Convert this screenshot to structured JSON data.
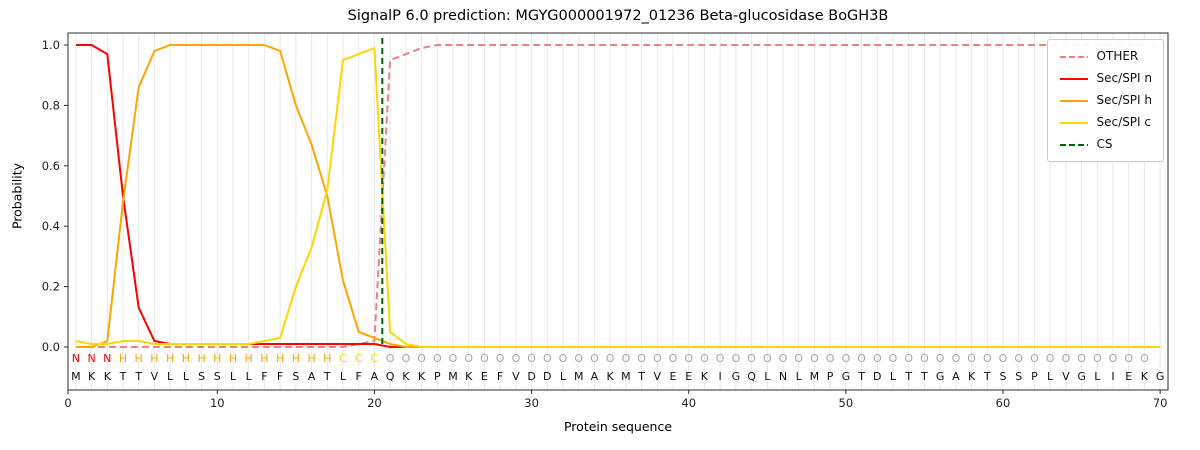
{
  "figure": {
    "title": "SignalP 6.0 prediction: MGYG000001972_01236 Beta-glucosidase BoGH3B",
    "xlabel": "Protein sequence",
    "ylabel": "Probability"
  },
  "chart_data": {
    "type": "line",
    "title": "SignalP 6.0 prediction: MGYG000001972_01236 Beta-glucosidase BoGH3B",
    "xlabel": "Protein sequence",
    "ylabel": "Probability",
    "ylim": [
      0,
      1
    ],
    "grid": "vertical-per-residue",
    "x": [
      1,
      2,
      3,
      4,
      5,
      6,
      7,
      8,
      9,
      10,
      11,
      12,
      13,
      14,
      15,
      16,
      17,
      18,
      19,
      20,
      21,
      22,
      23,
      24,
      25,
      26,
      27,
      28,
      29,
      30,
      31,
      32,
      33,
      34,
      35,
      36,
      37,
      38,
      39,
      40,
      41,
      42,
      43,
      44,
      45,
      46,
      47,
      48,
      49,
      50,
      51,
      52,
      53,
      54,
      55,
      56,
      57,
      58,
      59,
      60,
      61,
      62,
      63,
      64,
      65,
      66,
      67,
      68,
      69,
      70
    ],
    "axes": {
      "x_ticks": {
        "values": [
          0,
          10,
          20,
          30,
          40,
          50,
          60,
          70
        ],
        "labels": [
          "0",
          "10",
          "20",
          "30",
          "40",
          "50",
          "60",
          "70"
        ]
      },
      "y_ticks": {
        "values": [
          0,
          0.2,
          0.4,
          0.6,
          0.8,
          1.0
        ],
        "labels": [
          "0.0",
          "0.2",
          "0.4",
          "0.6",
          "0.8",
          "1.0"
        ]
      }
    },
    "series": [
      {
        "name": "OTHER",
        "color": "#f08080",
        "style": "dashed",
        "values": [
          0,
          0,
          0,
          0,
          0,
          0,
          0,
          0,
          0,
          0,
          0,
          0,
          0,
          0,
          0,
          0,
          0,
          0,
          0.01,
          0.02,
          0.95,
          0.97,
          0.99,
          1,
          1,
          1,
          1,
          1,
          1,
          1,
          1,
          1,
          1,
          1,
          1,
          1,
          1,
          1,
          1,
          1,
          1,
          1,
          1,
          1,
          1,
          1,
          1,
          1,
          1,
          1,
          1,
          1,
          1,
          1,
          1,
          1,
          1,
          1,
          1,
          1,
          1,
          1,
          1,
          1,
          1,
          1,
          1,
          1,
          1,
          1
        ]
      },
      {
        "name": "Sec/SPI n",
        "color": "#ff0000",
        "style": "solid",
        "values": [
          1,
          1,
          0.97,
          0.5,
          0.13,
          0.02,
          0.01,
          0.01,
          0.01,
          0.01,
          0.01,
          0.01,
          0.01,
          0.01,
          0.01,
          0.01,
          0.01,
          0.01,
          0.01,
          0.01,
          0,
          0,
          0,
          0,
          0,
          0,
          0,
          0,
          0,
          0,
          0,
          0,
          0,
          0,
          0,
          0,
          0,
          0,
          0,
          0,
          0,
          0,
          0,
          0,
          0,
          0,
          0,
          0,
          0,
          0,
          0,
          0,
          0,
          0,
          0,
          0,
          0,
          0,
          0,
          0,
          0,
          0,
          0,
          0,
          0,
          0,
          0,
          0,
          0,
          0
        ]
      },
      {
        "name": "Sec/SPI h",
        "color": "#ffa500",
        "style": "solid",
        "values": [
          0,
          0,
          0.02,
          0.48,
          0.86,
          0.98,
          1,
          1,
          1,
          1,
          1,
          1,
          1,
          0.98,
          0.8,
          0.67,
          0.5,
          0.22,
          0.05,
          0.03,
          0.01,
          0,
          0,
          0,
          0,
          0,
          0,
          0,
          0,
          0,
          0,
          0,
          0,
          0,
          0,
          0,
          0,
          0,
          0,
          0,
          0,
          0,
          0,
          0,
          0,
          0,
          0,
          0,
          0,
          0,
          0,
          0,
          0,
          0,
          0,
          0,
          0,
          0,
          0,
          0,
          0,
          0,
          0,
          0,
          0,
          0,
          0,
          0,
          0,
          0
        ]
      },
      {
        "name": "Sec/SPI c",
        "color": "#ffd700",
        "style": "solid",
        "values": [
          0.02,
          0.01,
          0.01,
          0.02,
          0.02,
          0.01,
          0.01,
          0.01,
          0.01,
          0.01,
          0.01,
          0.01,
          0.02,
          0.03,
          0.2,
          0.33,
          0.52,
          0.95,
          0.97,
          0.99,
          0.05,
          0.01,
          0,
          0,
          0,
          0,
          0,
          0,
          0,
          0,
          0,
          0,
          0,
          0,
          0,
          0,
          0,
          0,
          0,
          0,
          0,
          0,
          0,
          0,
          0,
          0,
          0,
          0,
          0,
          0,
          0,
          0,
          0,
          0,
          0,
          0,
          0,
          0,
          0,
          0,
          0,
          0,
          0,
          0,
          0,
          0,
          0,
          0,
          0,
          0
        ]
      }
    ],
    "cs_marker": {
      "name": "CS",
      "position": 20.5,
      "color": "#006400",
      "style": "dashed"
    },
    "legend": {
      "position": "upper-right",
      "entries": [
        "OTHER",
        "Sec/SPI n",
        "Sec/SPI h",
        "Sec/SPI c",
        "CS"
      ]
    },
    "sequence_annotation": {
      "sequence": "MKKTTVLLSSLLFFSATLFAQKKPMKEFVDDLMAKMTVEEKIGQLNLMPGTDLTTGAKTSSPLVGLIEKG",
      "regions": "NNNHHHHHHHHHHHHHHCCCOOOOOOOOOOOOOOOOOOOOOOOOOOOOOOOOOOOOOOOOOOOOOOOOO",
      "region_colors": {
        "N": "#ff0000",
        "H": "#ffa500",
        "C": "#ffd700",
        "O": "#a6a6a6"
      },
      "sequence_color": "#111111"
    },
    "style": {
      "grid_color": "#e7e7e7",
      "spine_color": "#2b2b2b",
      "tick_color": "#2b2b2b",
      "background": "#ffffff"
    }
  }
}
